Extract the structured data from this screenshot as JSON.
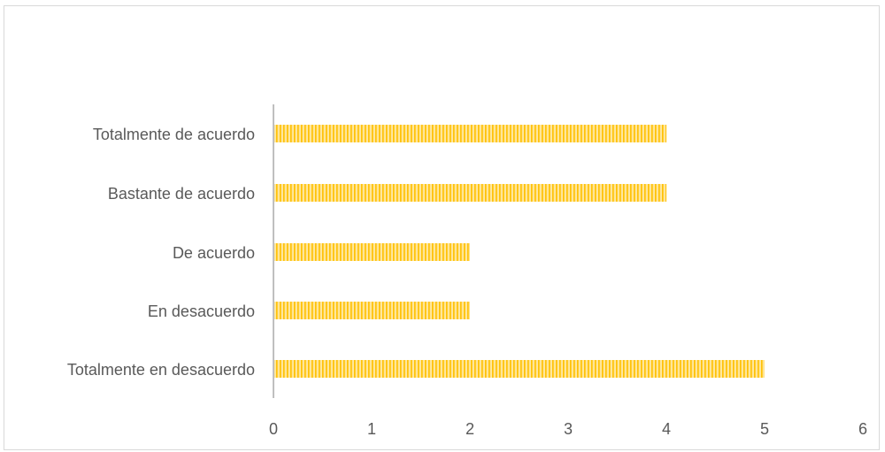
{
  "chart_data": {
    "type": "bar",
    "orientation": "horizontal",
    "categories": [
      "Totalmente de acuerdo",
      "Bastante de acuerdo",
      "De acuerdo",
      "En desacuerdo",
      "Totalmente en desacuerdo"
    ],
    "values": [
      4,
      4,
      2,
      2,
      5
    ],
    "x_ticks": [
      "0",
      "1",
      "2",
      "3",
      "4",
      "5",
      "6"
    ],
    "xlim": [
      0,
      6
    ],
    "grid": false,
    "legend": "none",
    "bar_color": "#ffc000",
    "bar_stripe_color": "#ffe699",
    "axis_color": "#bfbfbf"
  }
}
